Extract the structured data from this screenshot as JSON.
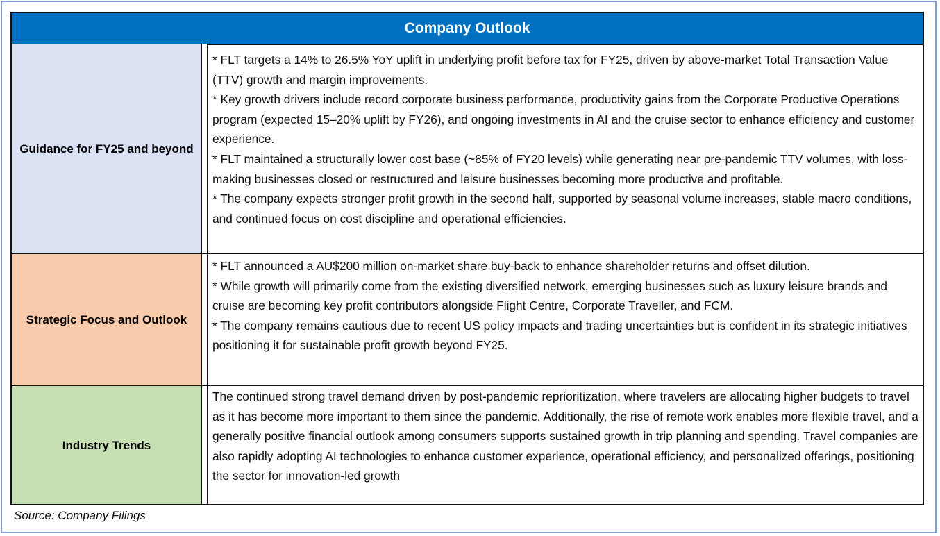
{
  "title": "Company Outlook",
  "colors": {
    "header": "#0070c0",
    "guidance": "#dae1f3",
    "strategic": "#f8cbad",
    "industry": "#c6e0b4"
  },
  "rows": [
    {
      "label": "Guidance for FY25 and beyond",
      "paragraphs": [
        "* FLT targets a 14% to 26.5% YoY uplift in underlying profit before tax for FY25, driven by above-market Total Transaction Value (TTV) growth and margin improvements.",
        "* Key growth drivers include record corporate business performance, productivity gains from the Corporate Productive Operations program (expected 15–20% uplift by FY26), and ongoing investments in AI and the cruise sector to enhance efficiency and customer experience.",
        "* FLT maintained a structurally lower cost base (~85% of FY20 levels) while generating near pre-pandemic TTV volumes, with loss-making businesses closed or restructured and leisure businesses becoming more productive and profitable.",
        "* The company expects stronger profit growth in the second half, supported by seasonal volume increases, stable macro conditions, and continued focus on cost discipline and operational efficiencies."
      ]
    },
    {
      "label": "Strategic Focus and Outlook",
      "paragraphs": [
        "* FLT announced a AU$200 million on-market share buy-back to enhance shareholder returns and offset dilution.",
        "* While growth will primarily come from the existing diversified network, emerging businesses such as luxury leisure brands and cruise are becoming key profit contributors alongside Flight Centre, Corporate Traveller, and FCM.",
        "* The company remains cautious due to recent US policy impacts and trading uncertainties but is confident in its strategic initiatives positioning it for sustainable profit growth beyond FY25."
      ]
    },
    {
      "label": "Industry Trends",
      "paragraphs": [
        "The continued strong travel demand driven by post-pandemic reprioritization, where travelers are allocating higher budgets to travel as it has become more important to them since the pandemic. Additionally, the rise of remote work  enables more flexible travel, and a generally positive financial outlook among consumers supports sustained growth in trip planning and spending. Travel companies are also rapidly adopting AI technologies to enhance customer experience, operational efficiency, and personalized offerings, positioning the sector for innovation-led growth"
      ]
    }
  ],
  "source": "Source: Company Filings"
}
